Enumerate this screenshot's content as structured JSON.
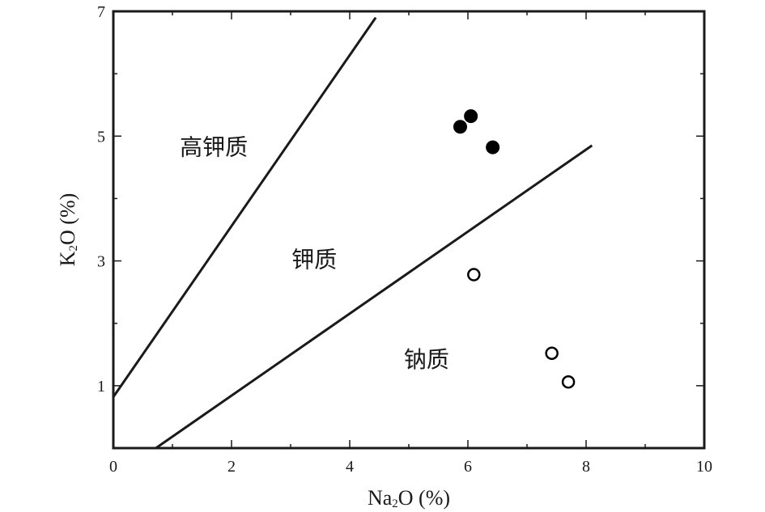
{
  "chart_data": {
    "type": "scatter",
    "title": "",
    "xlabel": {
      "main": "Na",
      "sub": "2",
      "rest": "O (%)"
    },
    "ylabel": {
      "main": "K",
      "sub": "2",
      "rest": "O (%)"
    },
    "xlim": [
      0,
      10
    ],
    "ylim": [
      0,
      7
    ],
    "x_ticks": [
      0,
      2,
      4,
      6,
      8,
      10
    ],
    "x_minor_ticks": [
      1,
      3,
      5,
      7,
      9
    ],
    "y_ticks": [
      1,
      3,
      5,
      7
    ],
    "y_minor_ticks": [
      2,
      4,
      6
    ],
    "grid": false,
    "legend": "none",
    "boundary_lines": [
      {
        "x": [
          0,
          4.44
        ],
        "y": [
          0.82,
          6.9
        ]
      },
      {
        "x": [
          0.72,
          8.1
        ],
        "y": [
          0,
          4.85
        ]
      }
    ],
    "regions": [
      {
        "label": "高钾质",
        "x": 1.7,
        "y": 4.8
      },
      {
        "label": "钾质",
        "x": 3.4,
        "y": 3.0
      },
      {
        "label": "钠质",
        "x": 5.3,
        "y": 1.4
      }
    ],
    "series": [
      {
        "marker": "filled-circle",
        "color": "#000000",
        "points": [
          [
            5.87,
            5.15
          ],
          [
            6.05,
            5.32
          ],
          [
            6.42,
            4.82
          ]
        ]
      },
      {
        "marker": "open-circle",
        "color": "#000000",
        "points": [
          [
            6.1,
            2.78
          ],
          [
            7.42,
            1.52
          ],
          [
            7.7,
            1.06
          ]
        ]
      }
    ]
  }
}
